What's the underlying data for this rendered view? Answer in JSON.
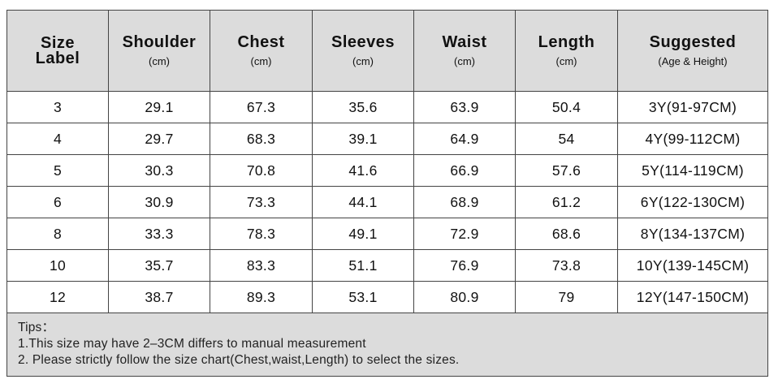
{
  "table": {
    "columns": [
      {
        "title": "Size Label"
      },
      {
        "title": "Shoulder",
        "unit": "(cm)"
      },
      {
        "title": "Chest",
        "unit": "(cm)"
      },
      {
        "title": "Sleeves",
        "unit": "(cm)"
      },
      {
        "title": "Waist",
        "unit": "(cm)"
      },
      {
        "title": "Length",
        "unit": "(cm)"
      },
      {
        "title": "Suggested",
        "unit": "(Age & Height)"
      }
    ],
    "rows": [
      [
        "3",
        "29.1",
        "67.3",
        "35.6",
        "63.9",
        "50.4",
        "3Y(91-97CM)"
      ],
      [
        "4",
        "29.7",
        "68.3",
        "39.1",
        "64.9",
        "54",
        "4Y(99-112CM)"
      ],
      [
        "5",
        "30.3",
        "70.8",
        "41.6",
        "66.9",
        "57.6",
        "5Y(114-119CM)"
      ],
      [
        "6",
        "30.9",
        "73.3",
        "44.1",
        "68.9",
        "61.2",
        "6Y(122-130CM)"
      ],
      [
        "8",
        "33.3",
        "78.3",
        "49.1",
        "72.9",
        "68.6",
        "8Y(134-137CM)"
      ],
      [
        "10",
        "35.7",
        "83.3",
        "51.1",
        "76.9",
        "73.8",
        "10Y(139-145CM)"
      ],
      [
        "12",
        "38.7",
        "89.3",
        "53.1",
        "80.9",
        "79",
        "12Y(147-150CM)"
      ]
    ]
  },
  "tips": {
    "title": "Tips：",
    "lines": [
      "1.This size may have 2–3CM differs to manual measurement",
      "2. Please strictly follow the size chart(Chest,waist,Length) to select the sizes."
    ]
  }
}
